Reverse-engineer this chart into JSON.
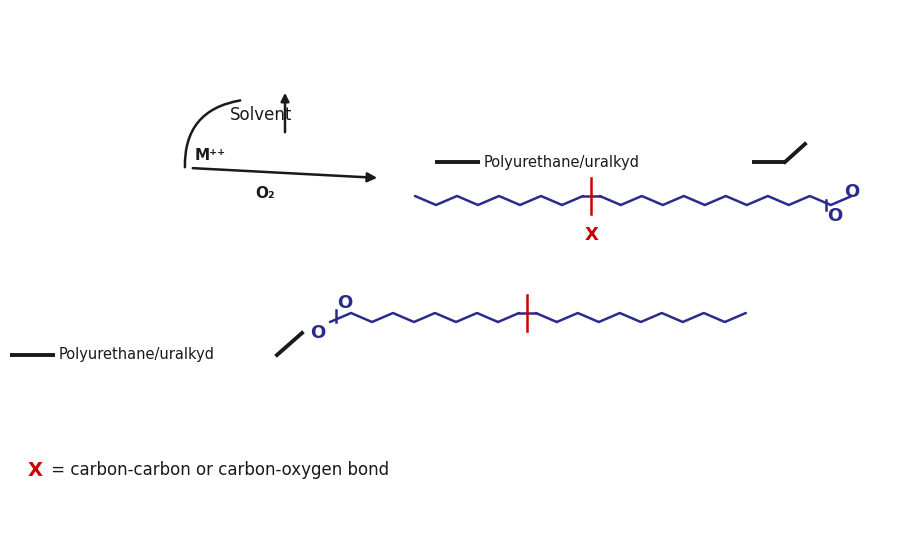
{
  "bg_color": "#ffffff",
  "black": "#1a1a1a",
  "blue": "#2b2b8c",
  "red": "#cc0000",
  "figsize": [
    9.0,
    5.5
  ],
  "dpi": 100,
  "solvent_label": "Solvent",
  "mpp_label": "M⁺⁺",
  "o2_label": "O₂",
  "poly_label": "Polyurethane/uralkyd",
  "x_label": "X",
  "legend_label": " = carbon-carbon or carbon-oxygen bond",
  "lw_chain": 1.8,
  "lw_poly": 2.8,
  "seg": 0.21,
  "amp": 0.09
}
